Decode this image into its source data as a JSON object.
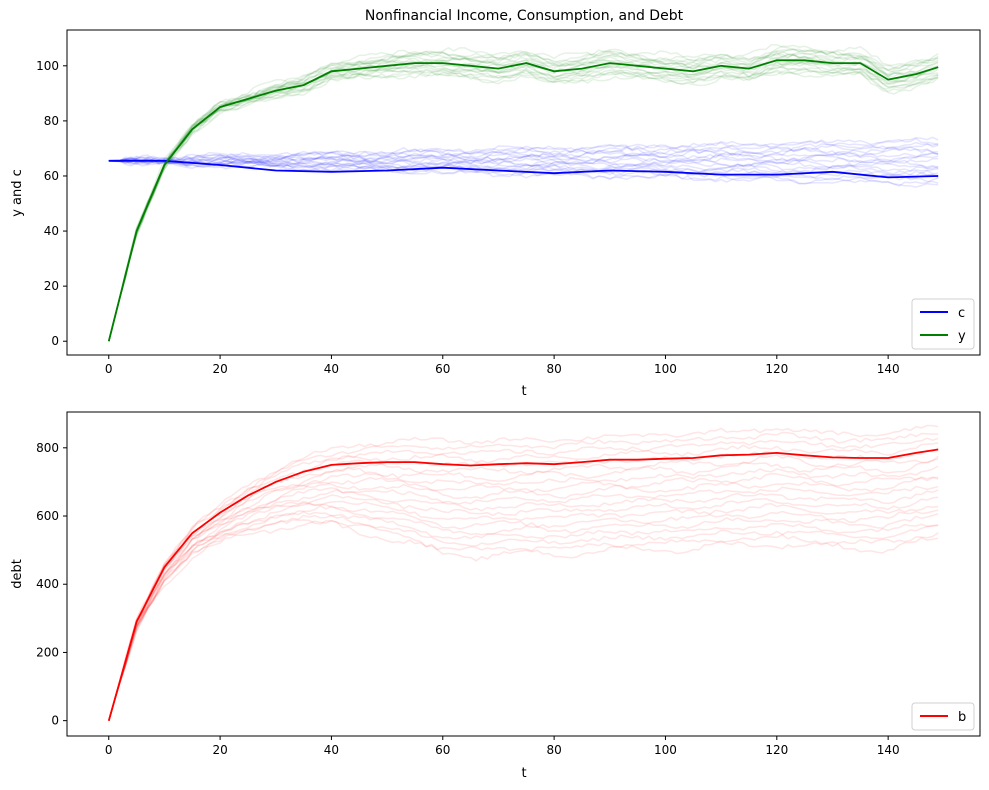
{
  "chart_data": [
    {
      "type": "line",
      "title": "Nonfinancial Income, Consumption, and Debt",
      "xlabel": "t",
      "ylabel": "y and c",
      "xlim": [
        -7.5,
        156.5
      ],
      "ylim": [
        -5,
        113
      ],
      "xticks": [
        0,
        20,
        40,
        60,
        80,
        100,
        120,
        140
      ],
      "xtick_labels": [
        "0",
        "20",
        "40",
        "60",
        "80",
        "100",
        "120",
        "140"
      ],
      "yticks": [
        0,
        20,
        40,
        60,
        80,
        100
      ],
      "ytick_labels": [
        "0",
        "20",
        "40",
        "60",
        "80",
        "100"
      ],
      "grid": false,
      "legend": {
        "position": "lower-right",
        "entries": [
          "c",
          "y"
        ]
      },
      "series": [
        {
          "name": "c",
          "color": "#0000ff",
          "x": [
            0,
            10,
            20,
            30,
            40,
            50,
            60,
            70,
            80,
            90,
            100,
            110,
            120,
            130,
            140,
            149
          ],
          "values": [
            65.5,
            65.5,
            64,
            62,
            61.5,
            62,
            63,
            62,
            61,
            62,
            61.5,
            60.5,
            60.5,
            61.5,
            59.5,
            60
          ]
        },
        {
          "name": "y",
          "color": "#008000",
          "x": [
            0,
            5,
            10,
            15,
            20,
            25,
            30,
            35,
            40,
            45,
            50,
            55,
            60,
            65,
            70,
            75,
            80,
            85,
            90,
            95,
            100,
            105,
            110,
            115,
            120,
            125,
            130,
            135,
            140,
            145,
            149
          ],
          "values": [
            0,
            40,
            64,
            77,
            85,
            88,
            91,
            93,
            98,
            99,
            100,
            101,
            101,
            100,
            99,
            101,
            98,
            99,
            101,
            100,
            99,
            98,
            100,
            99,
            102,
            102,
            101,
            101,
            95,
            97,
            99.5
          ]
        }
      ],
      "simulation_bands": [
        {
          "name": "c",
          "color": "#0000ff",
          "opacity": 0.1,
          "count": 20,
          "start": 65.5,
          "end_range": [
            57,
            73
          ]
        },
        {
          "name": "y",
          "color": "#008000",
          "opacity": 0.1,
          "count": 20,
          "end_range": [
            95,
            104
          ]
        }
      ]
    },
    {
      "type": "line",
      "title": "",
      "xlabel": "t",
      "ylabel": "debt",
      "xlim": [
        -7.5,
        156.5
      ],
      "ylim": [
        -45,
        905
      ],
      "xticks": [
        0,
        20,
        40,
        60,
        80,
        100,
        120,
        140
      ],
      "xtick_labels": [
        "0",
        "20",
        "40",
        "60",
        "80",
        "100",
        "120",
        "140"
      ],
      "yticks": [
        0,
        200,
        400,
        600,
        800
      ],
      "ytick_labels": [
        "0",
        "200",
        "400",
        "600",
        "800"
      ],
      "grid": false,
      "legend": {
        "position": "lower-right",
        "entries": [
          "b"
        ]
      },
      "series": [
        {
          "name": "b",
          "color": "#ff0000",
          "x": [
            0,
            5,
            10,
            15,
            20,
            25,
            30,
            35,
            40,
            45,
            50,
            55,
            60,
            65,
            70,
            75,
            80,
            85,
            90,
            95,
            100,
            105,
            110,
            115,
            120,
            125,
            130,
            135,
            140,
            145,
            149
          ],
          "values": [
            0,
            290,
            450,
            550,
            610,
            660,
            700,
            730,
            750,
            755,
            758,
            758,
            752,
            748,
            752,
            755,
            752,
            758,
            765,
            765,
            768,
            770,
            778,
            780,
            785,
            778,
            772,
            770,
            770,
            785,
            795
          ]
        }
      ],
      "simulation_bands": [
        {
          "name": "b",
          "color": "#ff0000",
          "opacity": 0.1,
          "count": 20,
          "end_range": [
            530,
            865
          ]
        }
      ]
    }
  ]
}
